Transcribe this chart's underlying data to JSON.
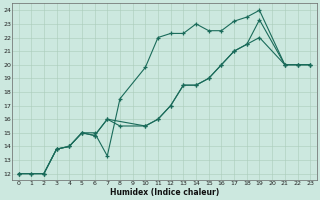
{
  "title": "",
  "xlabel": "Humidex (Indice chaleur)",
  "bg_color": "#cce8df",
  "line_color": "#1a6b5a",
  "grid_color": "#aaccbb",
  "xlim": [
    -0.5,
    23.5
  ],
  "ylim": [
    11.5,
    24.5
  ],
  "xticks": [
    0,
    1,
    2,
    3,
    4,
    5,
    6,
    7,
    8,
    9,
    10,
    11,
    12,
    13,
    14,
    15,
    16,
    17,
    18,
    19,
    20,
    21,
    22,
    23
  ],
  "yticks": [
    12,
    13,
    14,
    15,
    16,
    17,
    18,
    19,
    20,
    21,
    22,
    23,
    24
  ],
  "line1_x": [
    0,
    1,
    2,
    3,
    4,
    5,
    6,
    7,
    8,
    10,
    11,
    12,
    13,
    14,
    15,
    16,
    17,
    18,
    19,
    21,
    22,
    23
  ],
  "line1_y": [
    12,
    12,
    12,
    13.8,
    14,
    15,
    15,
    13.3,
    17.5,
    19.8,
    22.0,
    22.3,
    22.3,
    23.0,
    22.5,
    22.5,
    23.2,
    23.5,
    24.0,
    20.0,
    20.0,
    20.0
  ],
  "line2_x": [
    0,
    2,
    3,
    4,
    5,
    6,
    7,
    8,
    10,
    11,
    12,
    13,
    14,
    15,
    16,
    17,
    18,
    19,
    21,
    22,
    23
  ],
  "line2_y": [
    12,
    12,
    13.8,
    14,
    15,
    14.8,
    16.0,
    15.5,
    15.5,
    16.0,
    17.0,
    18.5,
    18.5,
    19.0,
    20.0,
    21.0,
    21.5,
    23.3,
    20.0,
    20.0,
    20.0
  ],
  "line3_x": [
    0,
    1,
    2,
    3,
    4,
    5,
    6,
    7,
    10,
    11,
    12,
    13,
    14,
    15,
    16,
    17,
    18,
    19,
    21,
    22,
    23
  ],
  "line3_y": [
    12,
    12,
    12,
    13.8,
    14.0,
    15.0,
    14.8,
    16.0,
    15.5,
    16.0,
    17.0,
    18.5,
    18.5,
    19.0,
    20.0,
    21.0,
    21.5,
    22.0,
    20.0,
    20.0,
    20.0
  ]
}
